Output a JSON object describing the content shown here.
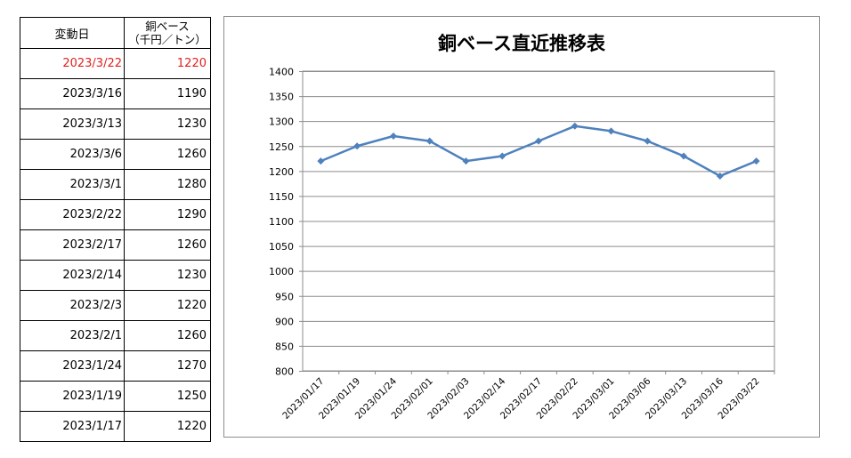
{
  "table": {
    "header_date": "変動日",
    "header_price_line1": "銅ベース",
    "header_price_line2": "（千円／トン）",
    "highlight_color": "#e02020",
    "rows": [
      {
        "date": "2023/3/22",
        "price": "1220"
      },
      {
        "date": "2023/3/16",
        "price": "1190"
      },
      {
        "date": "2023/3/13",
        "price": "1230"
      },
      {
        "date": "2023/3/6",
        "price": "1260"
      },
      {
        "date": "2023/3/1",
        "price": "1280"
      },
      {
        "date": "2023/2/22",
        "price": "1290"
      },
      {
        "date": "2023/2/17",
        "price": "1260"
      },
      {
        "date": "2023/2/14",
        "price": "1230"
      },
      {
        "date": "2023/2/3",
        "price": "1220"
      },
      {
        "date": "2023/2/1",
        "price": "1260"
      },
      {
        "date": "2023/1/24",
        "price": "1270"
      },
      {
        "date": "2023/1/19",
        "price": "1250"
      },
      {
        "date": "2023/1/17",
        "price": "1220"
      }
    ]
  },
  "chart_data": {
    "type": "line",
    "title": "銅ベース直近推移表",
    "xlabel": "",
    "ylabel": "",
    "categories": [
      "2023/01/17",
      "2023/01/19",
      "2023/01/24",
      "2023/02/01",
      "2023/02/03",
      "2023/02/14",
      "2023/02/17",
      "2023/02/22",
      "2023/03/01",
      "2023/03/06",
      "2023/03/13",
      "2023/03/16",
      "2023/03/22"
    ],
    "series": [
      {
        "values": [
          1220,
          1250,
          1270,
          1260,
          1220,
          1230,
          1260,
          1290,
          1280,
          1260,
          1230,
          1190,
          1220
        ],
        "color": "#4f81bd"
      }
    ],
    "ylim": [
      800,
      1400
    ],
    "yticks": [
      800,
      850,
      900,
      950,
      1000,
      1050,
      1100,
      1150,
      1200,
      1250,
      1300,
      1350,
      1400
    ],
    "grid": true,
    "legend": "none"
  }
}
